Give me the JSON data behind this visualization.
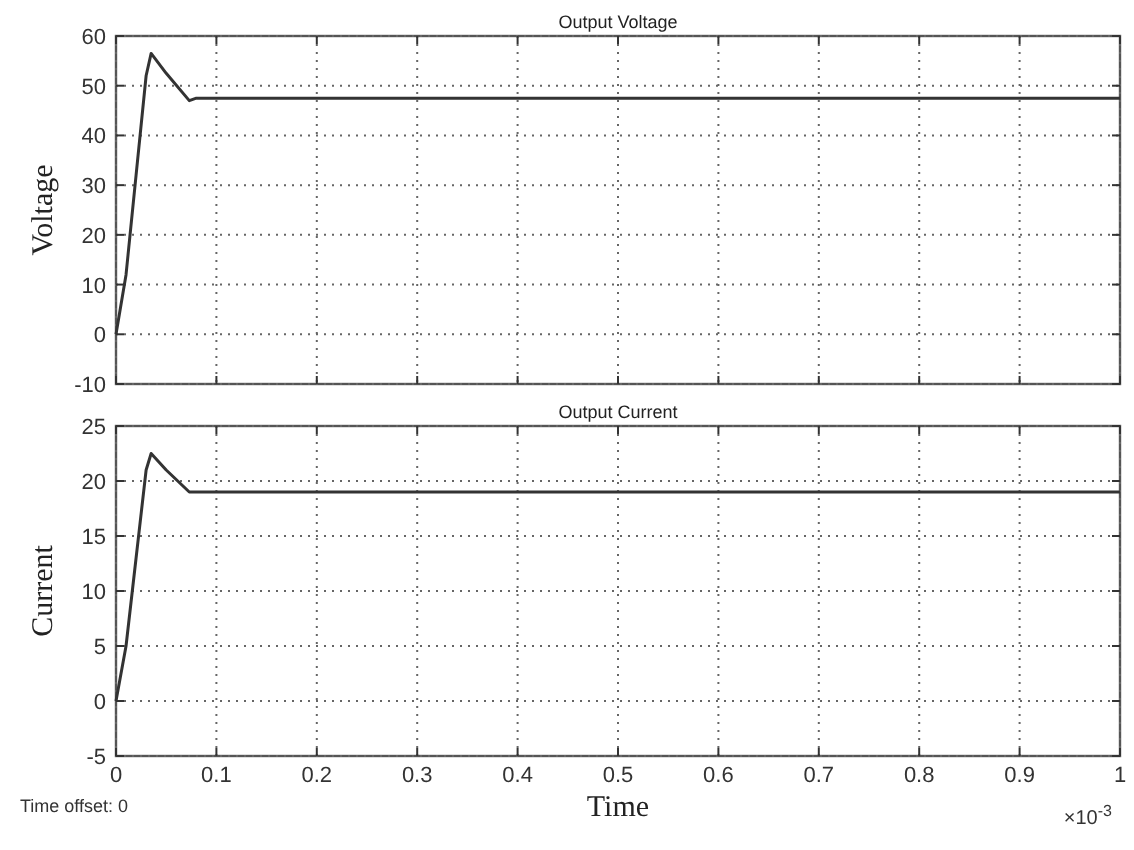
{
  "chart_data": [
    {
      "type": "line",
      "title": "Output Voltage",
      "ylabel": "Voltage",
      "x": [
        0,
        0.01,
        0.02,
        0.03,
        0.035,
        0.05,
        0.073,
        0.08,
        1
      ],
      "series": [
        {
          "color": "#333333",
          "values": [
            0,
            12,
            32,
            52,
            56.5,
            52.5,
            47,
            47.5,
            47.5
          ]
        }
      ],
      "xlim": [
        0,
        1
      ],
      "xticks": [
        0,
        0.1,
        0.2,
        0.3,
        0.4,
        0.5,
        0.6,
        0.7,
        0.8,
        0.9,
        1
      ],
      "ylim": [
        -10,
        60
      ],
      "yticks": [
        -10,
        0,
        10,
        20,
        30,
        40,
        50,
        60
      ],
      "grid": true,
      "tick_labels": "y",
      "line_style": "solid"
    },
    {
      "type": "line",
      "title": "Output Current",
      "ylabel": "Current",
      "xlabel": "Time",
      "x": [
        0,
        0.01,
        0.02,
        0.03,
        0.035,
        0.05,
        0.073,
        0.08,
        1
      ],
      "series": [
        {
          "color": "#333333",
          "values": [
            0,
            5,
            13,
            21,
            22.5,
            21,
            19,
            19,
            19
          ]
        }
      ],
      "xlim": [
        0,
        1
      ],
      "xticks": [
        0,
        0.1,
        0.2,
        0.3,
        0.4,
        0.5,
        0.6,
        0.7,
        0.8,
        0.9,
        1
      ],
      "ylim": [
        -5,
        25
      ],
      "yticks": [
        -5,
        0,
        5,
        10,
        15,
        20,
        25
      ],
      "grid": true,
      "line_style": "solid",
      "annotations": [
        "×10$^{-3}$",
        "Time offset:  0"
      ]
    }
  ]
}
